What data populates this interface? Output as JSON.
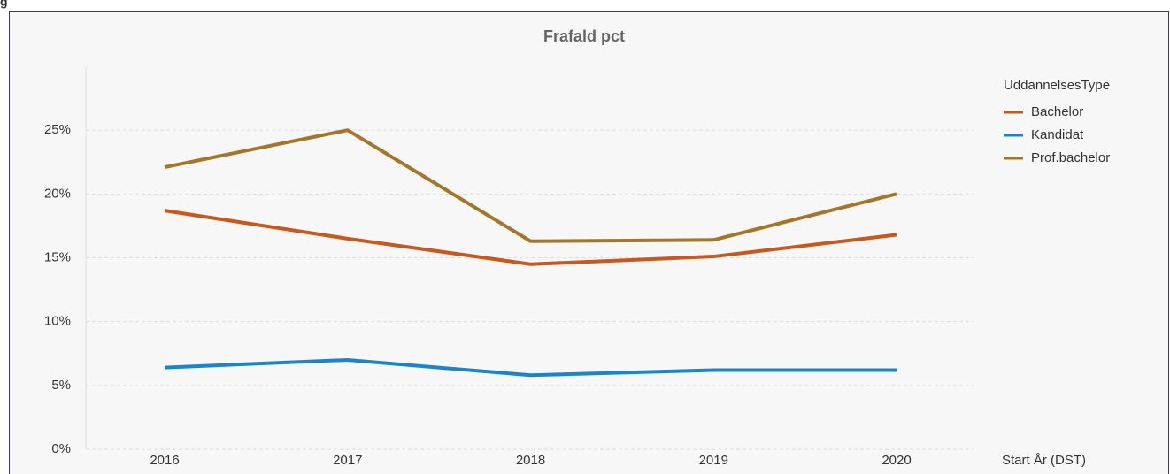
{
  "page_label": "g",
  "chart_data": {
    "type": "line",
    "title": "Frafald pct",
    "x_label": "Start År (DST)",
    "legend_title": "UddannelsesType",
    "legend": "right",
    "grid": true,
    "categories": [
      "2016",
      "2017",
      "2018",
      "2019",
      "2020"
    ],
    "series": [
      {
        "name": "Bachelor",
        "color": "#c8581e",
        "values": [
          18.7,
          16.5,
          14.5,
          15.1,
          16.8
        ]
      },
      {
        "name": "Kandidat",
        "color": "#1a85c8",
        "values": [
          6.4,
          7.0,
          5.8,
          6.2,
          6.2
        ]
      },
      {
        "name": "Prof.bachelor",
        "color": "#a4762a",
        "values": [
          22.1,
          25.0,
          16.3,
          16.4,
          20.0
        ]
      }
    ],
    "ylim": [
      0,
      30
    ],
    "yticks": [
      {
        "value": 0,
        "label": "0%"
      },
      {
        "value": 5,
        "label": "5%"
      },
      {
        "value": 10,
        "label": "10%"
      },
      {
        "value": 15,
        "label": "15%"
      },
      {
        "value": 20,
        "label": "20%"
      },
      {
        "value": 25,
        "label": "25%"
      }
    ]
  }
}
